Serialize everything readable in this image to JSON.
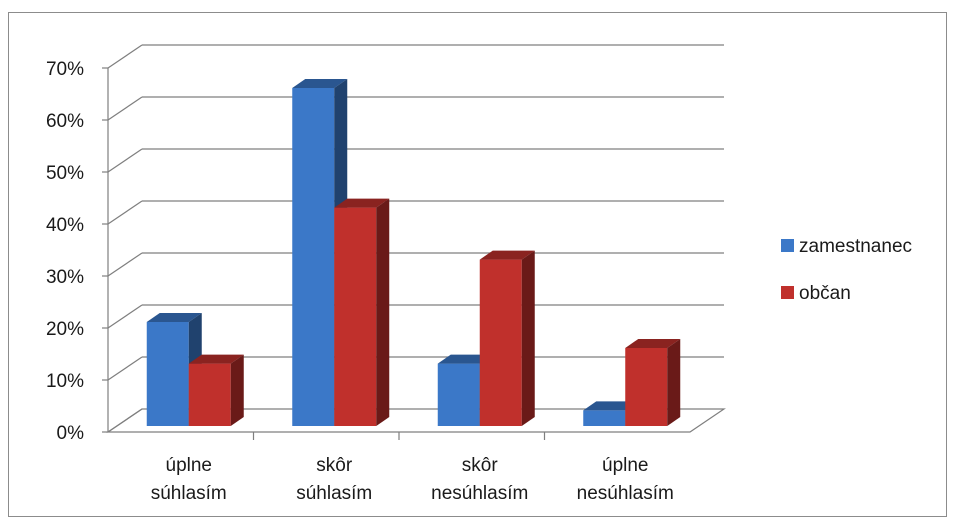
{
  "chart_data": {
    "type": "bar",
    "three_d": true,
    "categories": [
      [
        "úplne",
        "súhlasím"
      ],
      [
        "skôr",
        "súhlasím"
      ],
      [
        "skôr",
        "nesúhlasím"
      ],
      [
        "úplne",
        "nesúhlasím"
      ]
    ],
    "series": [
      {
        "name": "zamestnanec",
        "color": "#3b78c8",
        "values": [
          0.2,
          0.65,
          0.12,
          0.03
        ]
      },
      {
        "name": "občan",
        "color": "#c0302c",
        "values": [
          0.12,
          0.42,
          0.32,
          0.15
        ]
      }
    ],
    "yticks": [
      "0%",
      "10%",
      "20%",
      "30%",
      "40%",
      "50%",
      "60%",
      "70%"
    ],
    "ylim": [
      0,
      0.7
    ],
    "grid": true,
    "legend_position": "right"
  }
}
